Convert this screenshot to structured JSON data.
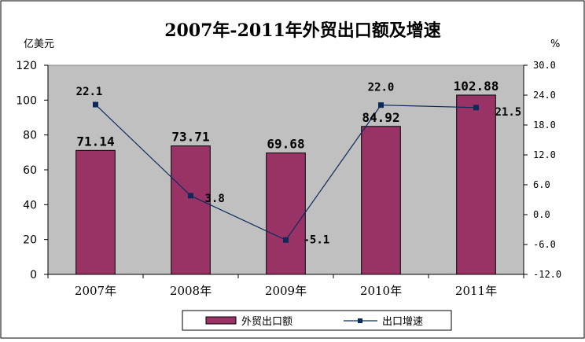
{
  "chart_data": {
    "type": "bar",
    "title": "2007年-2011年外贸出口额及增速",
    "categories": [
      "2007年",
      "2008年",
      "2009年",
      "2010年",
      "2011年"
    ],
    "series": [
      {
        "name": "外贸出口额",
        "type": "bar",
        "axis": "left",
        "values": [
          71.14,
          73.71,
          69.68,
          84.92,
          102.88
        ],
        "labels": [
          "71.14",
          "73.71",
          "69.68",
          "84.92",
          "102.88"
        ],
        "color": "#993366"
      },
      {
        "name": "出口增速",
        "type": "line",
        "axis": "right",
        "values": [
          22.1,
          3.8,
          -5.1,
          22.0,
          21.5
        ],
        "labels": [
          "22.1",
          "3.8",
          "-5.1",
          "22.0",
          "21.5"
        ],
        "color": "#0a2a5c"
      }
    ],
    "y_left": {
      "unit": "亿美元",
      "range": [
        0,
        120
      ],
      "ticks": [
        "0",
        "20",
        "40",
        "60",
        "80",
        "100",
        "120"
      ]
    },
    "y_right": {
      "unit": "%",
      "range": [
        -12,
        30
      ],
      "ticks": [
        "-12.0",
        "-6.0",
        "0.0",
        "6.0",
        "12.0",
        "18.0",
        "24.0",
        "30.0"
      ]
    },
    "plot_background": "#c0c0c0",
    "grid": false,
    "legend_position": "bottom"
  }
}
